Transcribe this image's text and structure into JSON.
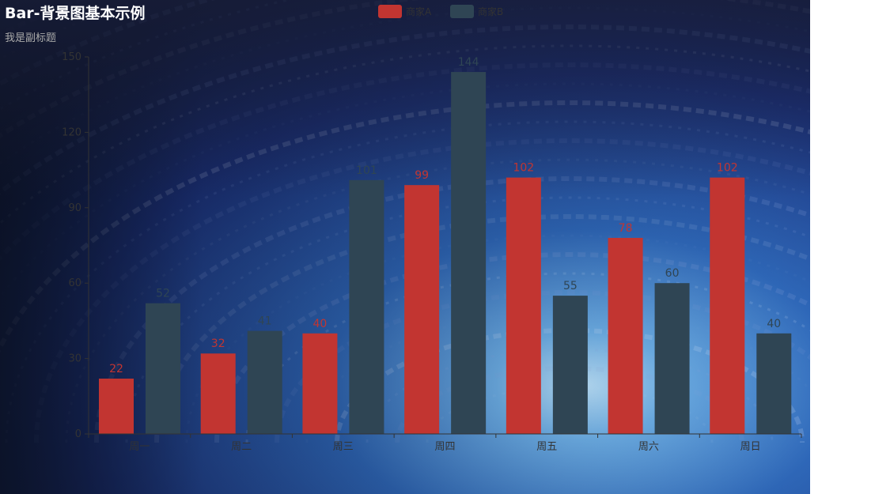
{
  "title": "Bar-背景图基本示例",
  "subtitle": "我是副标题",
  "colors": {
    "series_a": "#c23531",
    "series_b": "#2f4554",
    "axis": "#333333"
  },
  "legend": [
    {
      "name": "商家A",
      "color": "#c23531"
    },
    {
      "name": "商家B",
      "color": "#2f4554"
    }
  ],
  "chart_data": {
    "type": "bar",
    "categories": [
      "周一",
      "周二",
      "周三",
      "周四",
      "周五",
      "周六",
      "周日"
    ],
    "series": [
      {
        "name": "商家A",
        "values": [
          22,
          32,
          40,
          99,
          102,
          78,
          102
        ]
      },
      {
        "name": "商家B",
        "values": [
          52,
          41,
          101,
          144,
          55,
          60,
          40
        ]
      }
    ],
    "yticks": [
      0,
      30,
      60,
      90,
      120,
      150
    ],
    "ylim": [
      0,
      150
    ],
    "data_labels": true,
    "background": "image"
  }
}
